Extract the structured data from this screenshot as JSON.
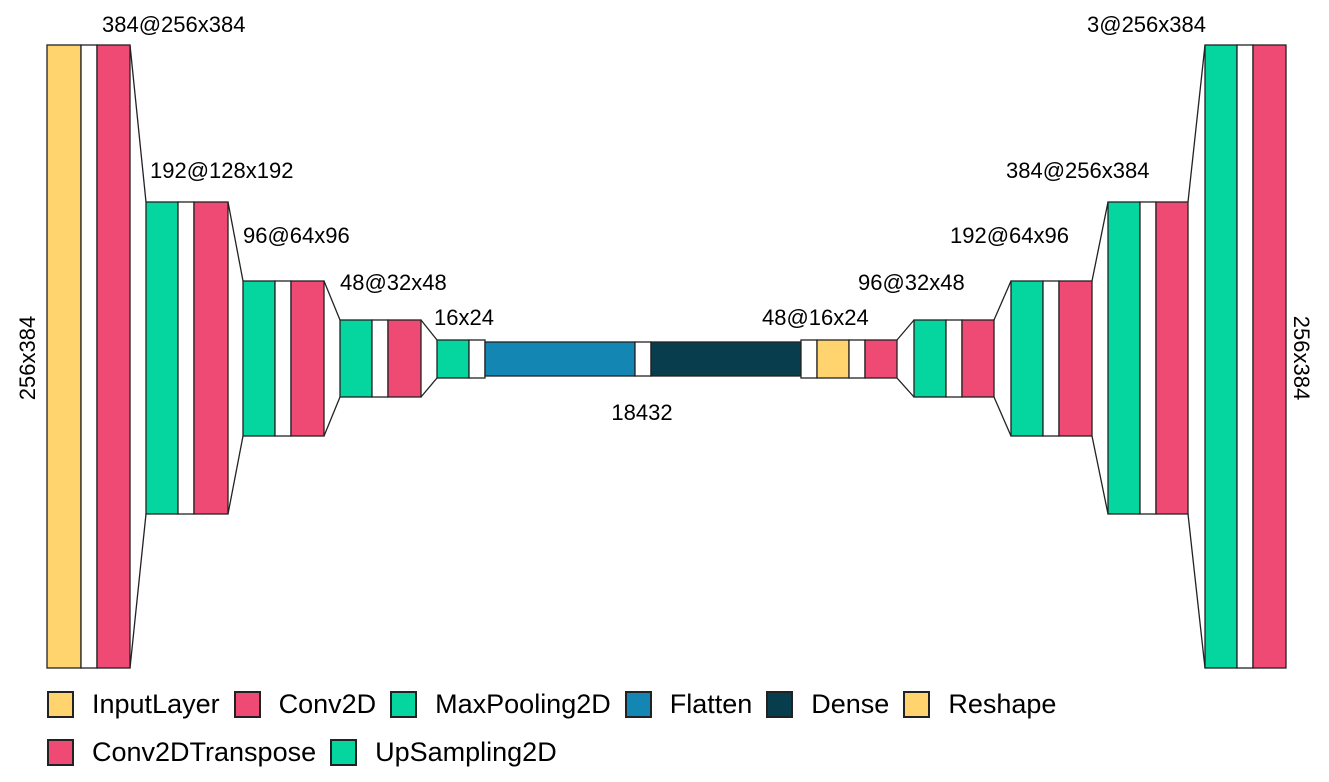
{
  "colors": {
    "input": "#FFD36E",
    "conv": "#EF4A73",
    "pool": "#05D59F",
    "flatten": "#1386B4",
    "dense": "#083D4D",
    "reshape": "#FFD36E",
    "conv_transpose": "#EF4A73",
    "upsampling": "#05D59F",
    "spacer": "#ffffff",
    "stroke": "#222222"
  },
  "labels": {
    "enc1": "384@256x384",
    "enc1_side": "256x384",
    "enc2": "192@128x192",
    "enc3": "96@64x96",
    "enc4": "48@32x48",
    "enc5": "16x24",
    "flat": "18432",
    "dec_reshape": "48@16x24",
    "dec1": "96@32x48",
    "dec2": "192@64x96",
    "dec3": "384@256x384",
    "dec4": "3@256x384",
    "dec4_side": "256x384"
  },
  "legend": [
    {
      "label": "InputLayer",
      "color_key": "input"
    },
    {
      "label": "Conv2D",
      "color_key": "conv"
    },
    {
      "label": "MaxPooling2D",
      "color_key": "pool"
    },
    {
      "label": "Flatten",
      "color_key": "flatten"
    },
    {
      "label": "Dense",
      "color_key": "dense"
    },
    {
      "label": "Reshape",
      "color_key": "reshape"
    },
    {
      "label": "Conv2DTranspose",
      "color_key": "conv_transpose"
    },
    {
      "label": "UpSampling2D",
      "color_key": "upsampling"
    }
  ]
}
